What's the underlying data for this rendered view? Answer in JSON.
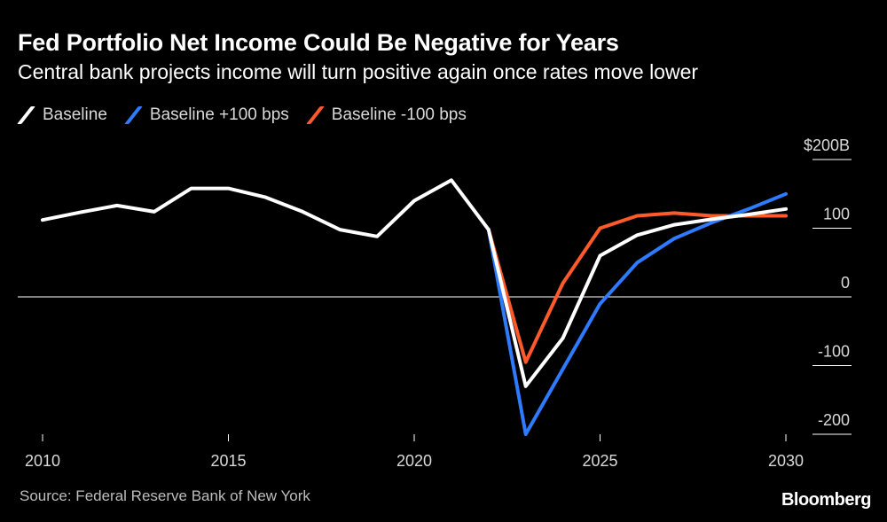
{
  "title": "Fed Portfolio Net Income Could Be Negative for Years",
  "subtitle": "Central bank projects income will turn positive again once rates move lower",
  "legend": [
    {
      "label": "Baseline",
      "color": "#ffffff"
    },
    {
      "label": "Baseline +100 bps",
      "color": "#2f7bff"
    },
    {
      "label": "Baseline -100 bps",
      "color": "#ff5a2b"
    }
  ],
  "source": "Source: Federal Reserve Bank of New York",
  "brand": "Bloomberg",
  "chart_data": {
    "type": "line",
    "title": "Fed Portfolio Net Income Could Be Negative for Years",
    "xlabel": "",
    "ylabel": "",
    "xlim": [
      2010,
      2030
    ],
    "ylim": [
      -200,
      200
    ],
    "x_ticks": [
      "2010",
      "2015",
      "2020",
      "2025",
      "2030"
    ],
    "y_ticks": [
      "$200B",
      "100",
      "0",
      "-100",
      "-200"
    ],
    "series": [
      {
        "name": "Baseline",
        "color": "#ffffff",
        "x": [
          2010,
          2011,
          2012,
          2013,
          2014,
          2015,
          2016,
          2017,
          2018,
          2019,
          2020,
          2021,
          2022,
          2023,
          2024,
          2025,
          2026,
          2027,
          2028,
          2029,
          2030
        ],
        "y": [
          112,
          123,
          133,
          124,
          158,
          158,
          145,
          124,
          98,
          88,
          140,
          170,
          98,
          -130,
          -60,
          60,
          90,
          105,
          113,
          120,
          128
        ]
      },
      {
        "name": "Baseline +100 bps",
        "color": "#2f7bff",
        "x": [
          2022,
          2023,
          2024,
          2025,
          2026,
          2027,
          2028,
          2029,
          2030
        ],
        "y": [
          98,
          -200,
          -105,
          -10,
          50,
          85,
          108,
          128,
          150
        ]
      },
      {
        "name": "Baseline -100 bps",
        "color": "#ff5a2b",
        "x": [
          2022,
          2023,
          2024,
          2025,
          2026,
          2027,
          2028,
          2029,
          2030
        ],
        "y": [
          98,
          -95,
          20,
          100,
          118,
          122,
          118,
          118,
          118
        ]
      }
    ]
  }
}
